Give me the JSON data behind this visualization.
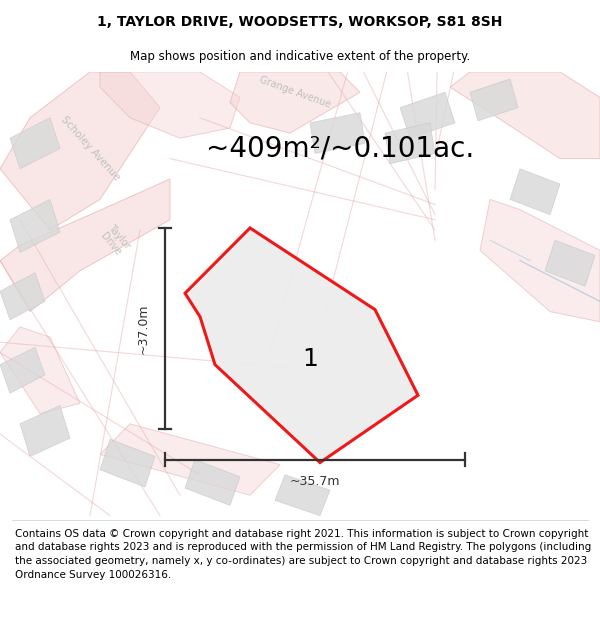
{
  "title": "1, TAYLOR DRIVE, WOODSETTS, WORKSOP, S81 8SH",
  "subtitle": "Map shows position and indicative extent of the property.",
  "area_text": "~409m²/~0.101ac.",
  "label_number": "1",
  "width_label": "~35.7m",
  "height_label": "~37.0m",
  "footer": "Contains OS data © Crown copyright and database right 2021. This information is subject to Crown copyright and database rights 2023 and is reproduced with the permission of HM Land Registry. The polygons (including the associated geometry, namely x, y co-ordinates) are subject to Crown copyright and database rights 2023 Ordnance Survey 100026316.",
  "bg_color": "#f0eeee",
  "footer_fontsize": 7.5,
  "title_fontsize": 10,
  "subtitle_fontsize": 8.5,
  "area_fontsize": 20,
  "number_fontsize": 18,
  "road_pink": "#f5d5d5",
  "road_edge": "#e0a0a0",
  "road_line": "#e8b0b0",
  "bld_face": "#d8d8d8",
  "bld_edge": "#c8c8c8",
  "prop_edge": "#ee0000",
  "prop_face": "#ececec",
  "dim_color": "#333333",
  "road_label_color": "#c0bfbf",
  "blue_line": "#a0c0d8"
}
